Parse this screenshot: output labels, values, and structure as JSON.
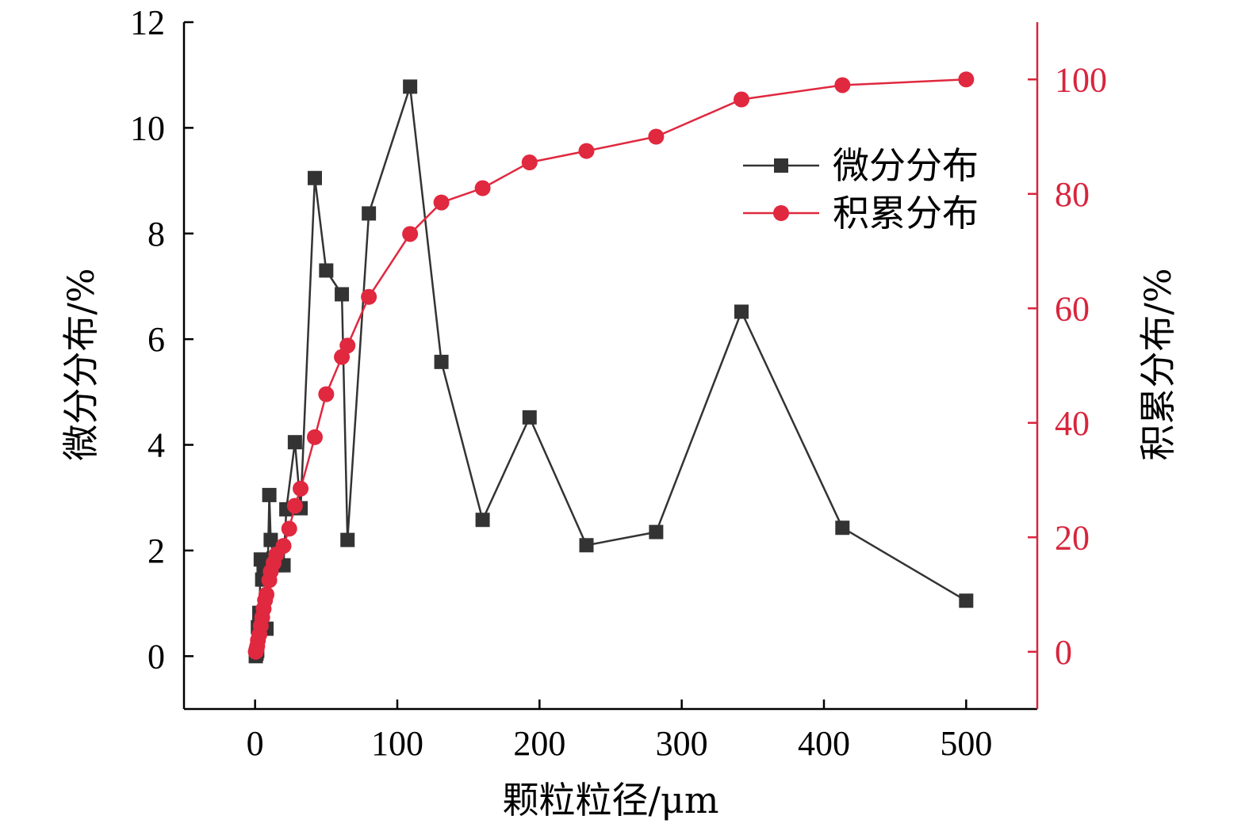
{
  "chart_data": {
    "type": "line",
    "xlabel": "颗粒粒径/μm",
    "ylabel_left": "微分分布/%",
    "ylabel_right": "积累分布/%",
    "x_ticks": [
      "0",
      "100",
      "200",
      "300",
      "400",
      "500"
    ],
    "y_left_ticks": [
      "0",
      "2",
      "4",
      "6",
      "8",
      "10",
      "12"
    ],
    "y_right_ticks": [
      "0",
      "20",
      "40",
      "60",
      "80",
      "100"
    ],
    "xlim": [
      -50,
      550
    ],
    "ylim_left": [
      -1,
      12
    ],
    "ylim_right": [
      -10,
      110
    ],
    "grid": false,
    "legend_position": "top-right",
    "colors": {
      "differential": "#333333",
      "cumulative": "#e0283f",
      "right_axis": "#d8253d",
      "axis": "#000000"
    },
    "series": [
      {
        "name": "微分分布",
        "axis": "left",
        "marker": "square",
        "x": [
          0.5,
          1,
          1.5,
          2,
          3,
          4,
          5,
          6,
          7,
          8,
          10,
          11,
          13,
          15,
          20,
          22,
          28,
          32,
          42,
          50,
          61,
          65,
          80,
          109,
          131,
          160,
          193,
          233,
          282,
          342,
          413,
          500
        ],
        "values": [
          0.0,
          0.05,
          0.1,
          0.55,
          0.82,
          1.83,
          1.45,
          1.6,
          1.73,
          0.52,
          3.05,
          2.2,
          1.85,
          1.72,
          1.72,
          2.78,
          4.05,
          2.8,
          9.05,
          7.3,
          6.85,
          2.2,
          8.38,
          10.78,
          5.57,
          2.58,
          4.52,
          2.1,
          2.35,
          6.52,
          2.43,
          1.05
        ]
      },
      {
        "name": "积累分布",
        "axis": "right",
        "marker": "circle",
        "x": [
          0.5,
          1,
          1.5,
          2,
          3,
          4,
          5,
          6,
          7,
          8,
          10,
          11,
          13,
          15,
          20,
          24,
          28,
          32,
          42,
          50,
          61,
          65,
          80,
          109,
          131,
          160,
          193,
          233,
          282,
          342,
          413,
          500
        ],
        "values": [
          0,
          0.5,
          1,
          2,
          3,
          4.5,
          6,
          7.5,
          9,
          10,
          12.5,
          14,
          15.5,
          17,
          18.5,
          21.5,
          25.5,
          28.5,
          37.5,
          45,
          51.5,
          53.5,
          62,
          73,
          78.5,
          81,
          85.5,
          87.5,
          90,
          96.5,
          99,
          100
        ]
      }
    ]
  }
}
